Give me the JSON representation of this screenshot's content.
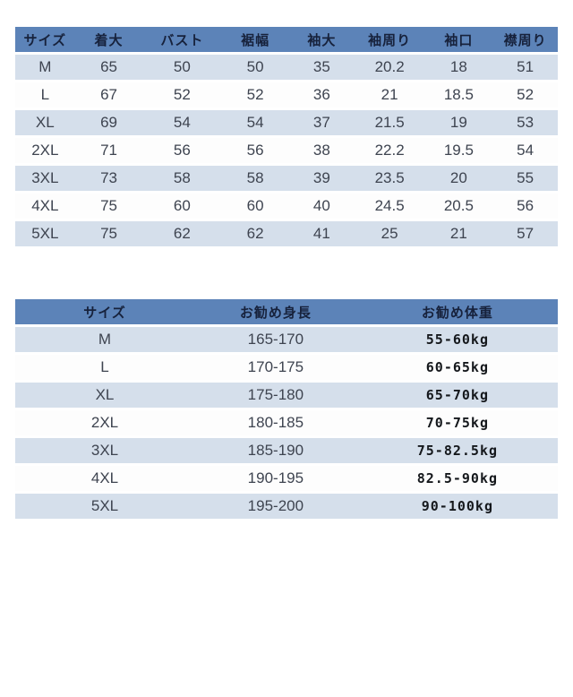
{
  "colors": {
    "header_bg": "#5c83b8",
    "header_text": "#17223c",
    "row_stripe_bg": "#d5dfeb",
    "row_plain_bg": "#ffffff",
    "cell_text": "#3e4450"
  },
  "chart_data": [
    {
      "type": "table",
      "title": "size-measurement-table",
      "headers": [
        "サイズ",
        "着大",
        "バスト",
        "裾幅",
        "袖大",
        "袖周り",
        "袖口",
        "襟周り"
      ],
      "rows": [
        [
          "M",
          "65",
          "50",
          "50",
          "35",
          "20.2",
          "18",
          "51"
        ],
        [
          "L",
          "67",
          "52",
          "52",
          "36",
          "21",
          "18.5",
          "52"
        ],
        [
          "XL",
          "69",
          "54",
          "54",
          "37",
          "21.5",
          "19",
          "53"
        ],
        [
          "2XL",
          "71",
          "56",
          "56",
          "38",
          "22.2",
          "19.5",
          "54"
        ],
        [
          "3XL",
          "73",
          "58",
          "58",
          "39",
          "23.5",
          "20",
          "55"
        ],
        [
          "4XL",
          "75",
          "60",
          "60",
          "40",
          "24.5",
          "20.5",
          "56"
        ],
        [
          "5XL",
          "75",
          "62",
          "62",
          "41",
          "25",
          "21",
          "57"
        ]
      ]
    },
    {
      "type": "table",
      "title": "recommended-fit-table",
      "headers": [
        "サイズ",
        "お勧め身長",
        "お勧め体重"
      ],
      "rows": [
        [
          "M",
          "165-170",
          "55-60kg"
        ],
        [
          "L",
          "170-175",
          "60-65kg"
        ],
        [
          "XL",
          "175-180",
          "65-70kg"
        ],
        [
          "2XL",
          "180-185",
          "70-75kg"
        ],
        [
          "3XL",
          "185-190",
          "75-82.5kg"
        ],
        [
          "4XL",
          "190-195",
          "82.5-90kg"
        ],
        [
          "5XL",
          "195-200",
          "90-100kg"
        ]
      ]
    }
  ]
}
